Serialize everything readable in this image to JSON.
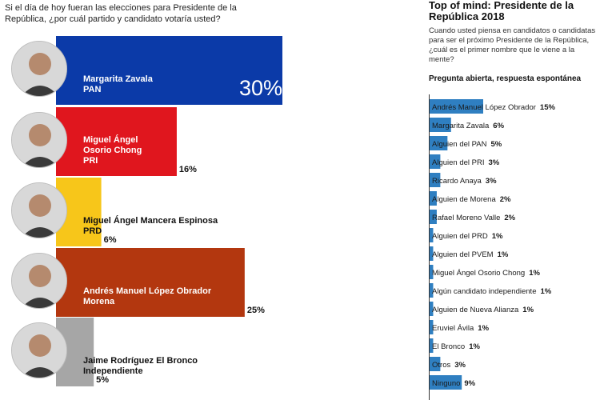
{
  "left": {
    "question": "Si el día de hoy fueran las elecciones para Presidente de la República, ¿por cuál partido y candidato votaría usted?",
    "candidates": [
      {
        "name_lines": [
          "Margarita Zavala",
          "PAN"
        ],
        "pct": "30%",
        "value": 30,
        "color": "#0b3aa8",
        "text_color": "#ffffff"
      },
      {
        "name_lines": [
          "Miguel Ángel",
          "Osorio Chong",
          "PRI"
        ],
        "pct": "16%",
        "value": 16,
        "color": "#e0161e",
        "text_color": "#ffffff"
      },
      {
        "name_lines": [
          "Miguel Ángel Mancera Espinosa",
          "PRD"
        ],
        "pct": "6%",
        "value": 6,
        "color": "#f7c61a",
        "text_color": "#111111"
      },
      {
        "name_lines": [
          "Andrés Manuel López Obrador",
          "Morena"
        ],
        "pct": "25%",
        "value": 25,
        "color": "#b3370f",
        "text_color": "#ffffff"
      },
      {
        "name_lines": [
          "Jaime Rodríguez El Bronco",
          "Independiente"
        ],
        "pct": "5%",
        "value": 5,
        "color": "#a6a6a6",
        "text_color": "#111111"
      }
    ]
  },
  "right": {
    "title": "Top of mind: Presidente de la República 2018",
    "subtitle": "Cuando usted piensa en candidatos o candidatas para ser el próximo Presidente de la República, ¿cuál es el primer nombre que le viene a la mente?",
    "type_label": "Pregunta abierta, respuesta espontánea",
    "bar_color": "#2f7fc1"
  },
  "chart_data": [
    {
      "type": "bar",
      "title": "",
      "categories": [
        "Margarita Zavala PAN",
        "Miguel Ángel Osorio Chong PRI",
        "Miguel Ángel Mancera Espinosa PRD",
        "Andrés Manuel López Obrador Morena",
        "Jaime Rodríguez El Bronco Independiente"
      ],
      "values": [
        30,
        16,
        6,
        25,
        5
      ],
      "xlabel": "",
      "ylabel": "",
      "unit": "%",
      "grid": false
    },
    {
      "type": "bar",
      "title": "Top of mind: Presidente de la República 2018",
      "categories": [
        "Andrés Manuel López Obrador",
        "Margarita Zavala",
        "Alguien del PAN",
        "Alguien del PRI",
        "Ricardo Anaya",
        "Alguien de Morena",
        "Rafael Moreno Valle",
        "Alguien del PRD",
        "Alguien del PVEM",
        "Miguel Ángel Osorio Chong",
        "Algún candidato independiente",
        "Alguien de Nueva Alianza",
        "Eruviel Ávila",
        "El Bronco",
        "Otros",
        "Ninguno"
      ],
      "labels": [
        "15%",
        "6%",
        "5%",
        "3%",
        "3%",
        "2%",
        "2%",
        "1%",
        "1%",
        "1%",
        "1%",
        "1%",
        "1%",
        "1%",
        "3%",
        "9%"
      ],
      "values": [
        15,
        6,
        5,
        3,
        3,
        2,
        2,
        1,
        1,
        1,
        1,
        1,
        1,
        1,
        3,
        9
      ],
      "xlabel": "",
      "ylabel": "",
      "unit": "%",
      "grid": false
    }
  ]
}
